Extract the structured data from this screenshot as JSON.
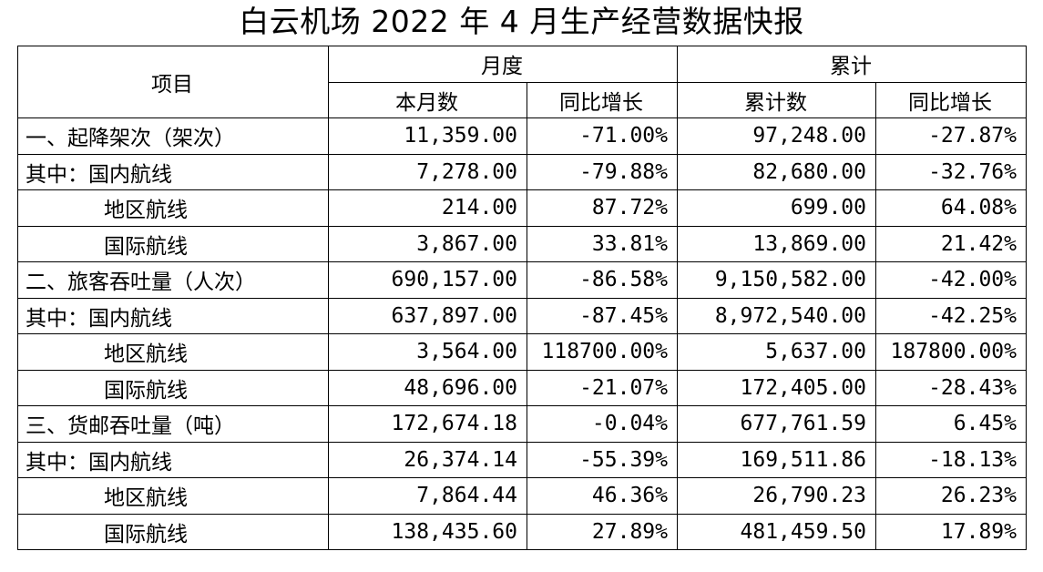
{
  "title": "白云机场 2022 年 4 月生产经营数据快报",
  "header": {
    "item": "项目",
    "month_group": "月度",
    "cumulative_group": "累计",
    "month_value": "本月数",
    "month_yoy": "同比增长",
    "cumulative_value": "累计数",
    "cumulative_yoy": "同比增长"
  },
  "rows": [
    {
      "label": "一、起降架次（架次）",
      "month": "11,359.00",
      "month_yoy": "-71.00%",
      "cum": "97,248.00",
      "cum_yoy": "-27.87%"
    },
    {
      "label": "其中：国内航线",
      "month": "7,278.00",
      "month_yoy": "-79.88%",
      "cum": "82,680.00",
      "cum_yoy": "-32.76%"
    },
    {
      "label": "地区航线",
      "month": "214.00",
      "month_yoy": "87.72%",
      "cum": "699.00",
      "cum_yoy": "64.08%"
    },
    {
      "label": "国际航线",
      "month": "3,867.00",
      "month_yoy": "33.81%",
      "cum": "13,869.00",
      "cum_yoy": "21.42%"
    },
    {
      "label": "二、旅客吞吐量（人次）",
      "month": "690,157.00",
      "month_yoy": "-86.58%",
      "cum": "9,150,582.00",
      "cum_yoy": "-42.00%"
    },
    {
      "label": "其中：国内航线",
      "month": "637,897.00",
      "month_yoy": "-87.45%",
      "cum": "8,972,540.00",
      "cum_yoy": "-42.25%"
    },
    {
      "label": "地区航线",
      "month": "3,564.00",
      "month_yoy": "118700.00%",
      "cum": "5,637.00",
      "cum_yoy": "187800.00%"
    },
    {
      "label": "国际航线",
      "month": "48,696.00",
      "month_yoy": "-21.07%",
      "cum": "172,405.00",
      "cum_yoy": "-28.43%"
    },
    {
      "label": "三、货邮吞吐量（吨）",
      "month": "172,674.18",
      "month_yoy": "-0.04%",
      "cum": "677,761.59",
      "cum_yoy": "6.45%"
    },
    {
      "label": "其中：国内航线",
      "month": "26,374.14",
      "month_yoy": "-55.39%",
      "cum": "169,511.86",
      "cum_yoy": "-18.13%"
    },
    {
      "label": "地区航线",
      "month": "7,864.44",
      "month_yoy": "46.36%",
      "cum": "26,790.23",
      "cum_yoy": "26.23%"
    },
    {
      "label": "国际航线",
      "month": "138,435.60",
      "month_yoy": "27.89%",
      "cum": "481,459.50",
      "cum_yoy": "17.89%"
    }
  ]
}
